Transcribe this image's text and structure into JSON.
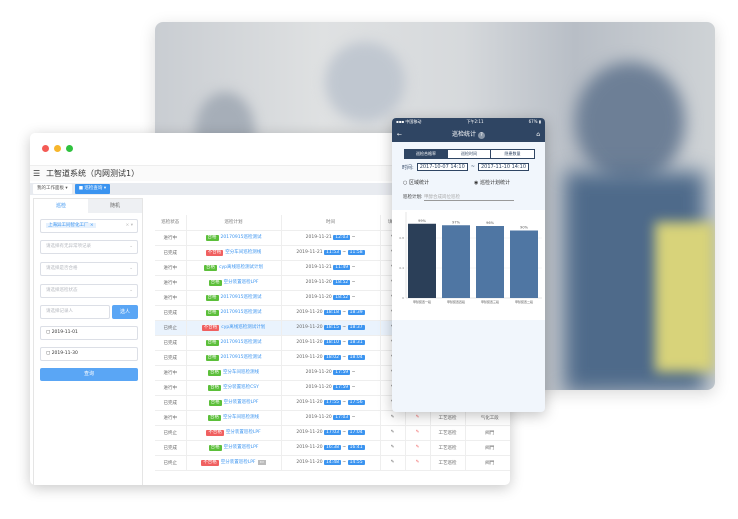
{
  "desktop": {
    "app_title": "工智道系统（内网测试1）",
    "tabs": [
      {
        "label": "我的工作面板"
      },
      {
        "label": "巡检查询"
      }
    ],
    "left_tabs": [
      "巡检",
      "随机"
    ],
    "factory_tag": "上海异工同智化工厂",
    "selects": [
      "请选择有无异常项记录",
      "请选择是否合格",
      "请选择巡检状态"
    ],
    "person_placeholder": "请选择记录人",
    "select_person_label": "选人",
    "date_start": "2019-11-01",
    "date_end": "2019-11-30",
    "query_label": "查询",
    "columns": [
      "巡检状态",
      "巡检计划",
      "时间",
      "填写"
    ],
    "rows": [
      {
        "status": "进行中",
        "result": "合格",
        "plan": "20170915巡检测试",
        "date": "2019-11-21",
        "start": "12:03",
        "end": ""
      },
      {
        "status": "已完成",
        "result": "不合格",
        "plan": "空分车间巡检测线",
        "date": "2019-11-21",
        "start": "11:53",
        "end": "11:58"
      },
      {
        "status": "进行中",
        "result": "合格",
        "plan": "cyp离线巡检测试计划",
        "date": "2019-11-21",
        "start": "11:49",
        "end": ""
      },
      {
        "status": "进行中",
        "result": "合格",
        "plan": "空分装置巡检LPF",
        "date": "2019-11-20",
        "start": "18:52",
        "end": ""
      },
      {
        "status": "进行中",
        "result": "合格",
        "plan": "20170915巡检测试",
        "date": "2019-11-20",
        "start": "18:52",
        "end": ""
      },
      {
        "status": "已完成",
        "result": "合格",
        "plan": "20170915巡检测试",
        "date": "2019-11-20",
        "start": "18:18",
        "end": "18:39"
      },
      {
        "status": "已终止",
        "result": "不合格",
        "plan": "cyp离线巡检测试计划",
        "date": "2019-11-20",
        "start": "18:15",
        "end": "18:37"
      },
      {
        "status": "已完成",
        "result": "合格",
        "plan": "20170915巡检测试",
        "date": "2019-11-20",
        "start": "18:10",
        "end": "18:31"
      },
      {
        "status": "已完成",
        "result": "合格",
        "plan": "20170915巡检测试",
        "date": "2019-11-20",
        "start": "18:02",
        "end": "18:04"
      },
      {
        "status": "进行中",
        "result": "合格",
        "plan": "空分车间巡检测线",
        "date": "2019-11-20",
        "start": "17:59",
        "end": ""
      },
      {
        "status": "进行中",
        "result": "合格",
        "plan": "空分装置巡检CSY",
        "date": "2019-11-20",
        "start": "17:59",
        "end": ""
      },
      {
        "status": "已完成",
        "result": "合格",
        "plan": "空分装置巡检LPF",
        "date": "2019-11-20",
        "start": "17:55",
        "end": "17:56",
        "type": "工艺巡检",
        "area": "阀門"
      },
      {
        "status": "进行中",
        "result": "合格",
        "plan": "空分车间巡检测线",
        "date": "2019-11-20",
        "start": "17:03",
        "end": "",
        "type": "工艺巡检",
        "area": "气化工段"
      },
      {
        "status": "已终止",
        "result": "不合格",
        "plan": "空分装置巡检LPF",
        "date": "2019-11-20",
        "start": "17:03",
        "end": "17:04",
        "type": "工艺巡检",
        "area": "阀門"
      },
      {
        "status": "已完成",
        "result": "合格",
        "plan": "空分装置巡检LPF",
        "date": "2019-11-20",
        "start": "16:38",
        "end": "16:41",
        "type": "工艺巡检",
        "area": "阀門"
      },
      {
        "status": "已终止",
        "result": "不合格",
        "plan": "空分装置巡检LPF",
        "date": "2019-11-20",
        "start": "14:48",
        "end": "14:55",
        "type": "工艺巡检",
        "area": "阀門"
      }
    ]
  },
  "phone": {
    "carrier": "中国移动",
    "clock": "下午2:11",
    "battery": "67%",
    "title": "巡检统计",
    "segments": [
      "巡检合格率",
      "巡检时间",
      "隐患数量"
    ],
    "time_label": "时间:",
    "time_start": "2017-10-07 14:10",
    "time_sep": "~",
    "time_end": "2017-11-10 14:10",
    "radio_area": "区域统计",
    "radio_plan": "巡检计划统计",
    "plan_label": "巡检计划:",
    "plan_placeholder": "甲醇合成岗位巡检"
  },
  "chart_data": {
    "type": "bar",
    "categories": [
      "甲醇装置一段",
      "甲醇装置四段",
      "甲醇装置三段",
      "甲醇装置二段"
    ],
    "values": [
      0.99,
      0.97,
      0.96,
      0.9
    ],
    "data_labels": [
      "99%",
      "97%",
      "96%",
      "90%"
    ],
    "ylim": [
      0,
      1
    ],
    "yticks": [
      "0",
      "0.4",
      "0.8"
    ],
    "colors": [
      "#2b3f58",
      "#4f76a3",
      "#4f76a3",
      "#4f76a3"
    ]
  }
}
